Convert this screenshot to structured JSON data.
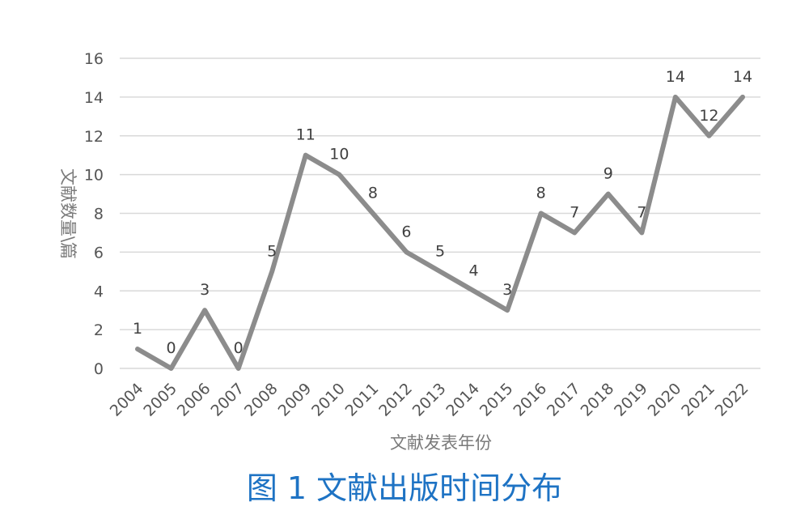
{
  "caption": "图 1 文献出版时间分布",
  "chart_data": {
    "type": "line",
    "title": "",
    "xlabel": "文献发表年份",
    "ylabel": "文献数量\\篇",
    "categories": [
      "2004",
      "2005",
      "2006",
      "2007",
      "2008",
      "2009",
      "2010",
      "2011",
      "2012",
      "2013",
      "2014",
      "2015",
      "2016",
      "2017",
      "2018",
      "2019",
      "2020",
      "2021",
      "2022"
    ],
    "values": [
      1,
      0,
      3,
      0,
      5,
      11,
      10,
      8,
      6,
      5,
      4,
      3,
      8,
      7,
      9,
      7,
      14,
      12,
      14
    ],
    "ylim": [
      0,
      16
    ],
    "yticks": [
      0,
      2,
      4,
      6,
      8,
      10,
      12,
      14,
      16
    ],
    "grid": true,
    "legend": "none",
    "line_color": "#8c8c8c",
    "grid_color": "#d9d9d9"
  }
}
